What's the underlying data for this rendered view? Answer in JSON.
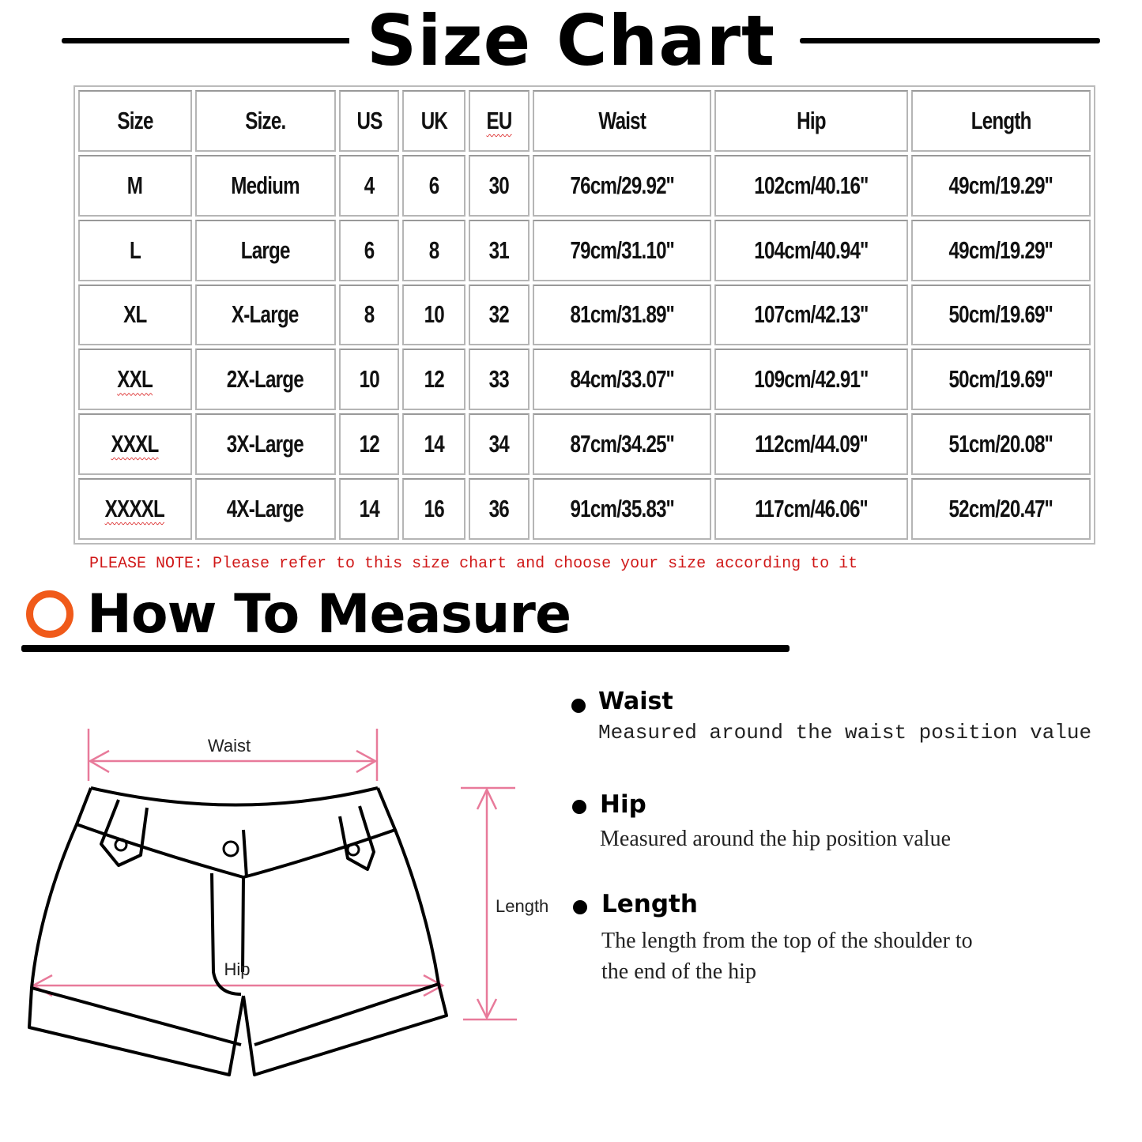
{
  "title": "Size Chart",
  "table": {
    "headers": [
      "Size",
      "Size.",
      "US",
      "UK",
      "EU",
      "Waist",
      "Hip",
      "Length"
    ],
    "rows": [
      [
        "M",
        "Medium",
        "4",
        "6",
        "30",
        "76cm/29.92''",
        "102cm/40.16''",
        "49cm/19.29''"
      ],
      [
        "L",
        "Large",
        "6",
        "8",
        "31",
        "79cm/31.10''",
        "104cm/40.94''",
        "49cm/19.29''"
      ],
      [
        "XL",
        "X-Large",
        "8",
        "10",
        "32",
        "81cm/31.89''",
        "107cm/42.13''",
        "50cm/19.69''"
      ],
      [
        "XXL",
        "2X-Large",
        "10",
        "12",
        "33",
        "84cm/33.07''",
        "109cm/42.91''",
        "50cm/19.69''"
      ],
      [
        "XXXL",
        "3X-Large",
        "12",
        "14",
        "34",
        "87cm/34.25''",
        "112cm/44.09''",
        "51cm/20.08''"
      ],
      [
        "XXXXL",
        "4X-Large",
        "14",
        "16",
        "36",
        "91cm/35.83''",
        "117cm/46.06''",
        "52cm/20.47''"
      ]
    ]
  },
  "note": "PLEASE NOTE: Please refer to this size chart and choose your size according to it",
  "measure": {
    "title": "How To Measure",
    "accent_color": "#f05a1a",
    "diagram_labels": {
      "waist": "Waist",
      "hip": "Hip",
      "length": "Length"
    },
    "diagram_line_color": "#e87a9a",
    "items": [
      {
        "label": "Waist",
        "desc": "Measured around the waist position value"
      },
      {
        "label": "Hip",
        "desc": "Measured around the  hip position value"
      },
      {
        "label": "Length",
        "desc": "The length from the top of the shoulder to",
        "desc2": "the end of the hip"
      }
    ]
  }
}
